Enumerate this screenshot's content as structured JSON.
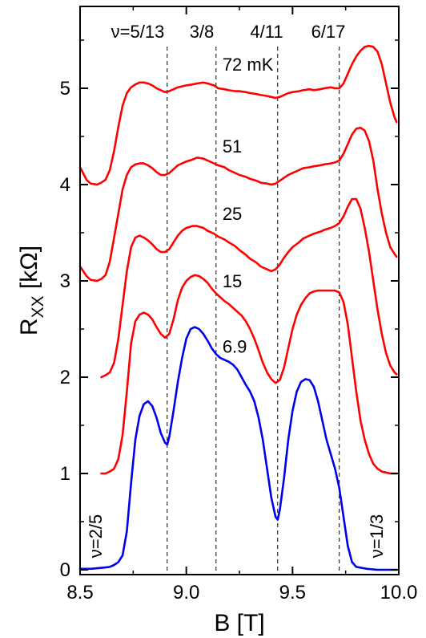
{
  "chart_data": {
    "type": "line",
    "xlabel": "B [T]",
    "ylabel_main": "R",
    "ylabel_sub": "XX",
    "ylabel_unit": " [kΩ]",
    "xlim": [
      8.5,
      10.0
    ],
    "ylim": [
      -0.05,
      5.85
    ],
    "xticks": [
      8.5,
      9.0,
      9.5,
      10.0
    ],
    "xtick_labels": [
      "8.5",
      "9.0",
      "9.5",
      "10.0"
    ],
    "yticks": [
      0,
      1,
      2,
      3,
      4,
      5
    ],
    "ytick_labels": [
      "0",
      "1",
      "2",
      "3",
      "4",
      "5"
    ],
    "grid": false,
    "colors": {
      "warm": "#ff0000",
      "base": "#0000ee",
      "marker": "#000000"
    },
    "markers": [
      {
        "x": 8.91,
        "label": "ν=5/13"
      },
      {
        "x": 9.14,
        "label": "3/8"
      },
      {
        "x": 9.43,
        "label": "4/11"
      },
      {
        "x": 9.72,
        "label": "6/17"
      }
    ],
    "side_labels": {
      "left": "ν=2/5",
      "right": "ν=1/3"
    },
    "series": [
      {
        "name": "72 mK",
        "color": "#ff0000",
        "x": [
          8.5,
          8.53,
          8.55,
          8.58,
          8.6,
          8.62,
          8.64,
          8.66,
          8.68,
          8.7,
          8.72,
          8.74,
          8.76,
          8.78,
          8.8,
          8.82,
          8.84,
          8.86,
          8.88,
          8.9,
          8.92,
          8.94,
          8.96,
          8.98,
          9.0,
          9.03,
          9.05,
          9.08,
          9.1,
          9.13,
          9.15,
          9.18,
          9.2,
          9.23,
          9.25,
          9.28,
          9.3,
          9.33,
          9.35,
          9.38,
          9.4,
          9.42,
          9.44,
          9.46,
          9.48,
          9.5,
          9.53,
          9.55,
          9.58,
          9.6,
          9.63,
          9.65,
          9.68,
          9.7,
          9.72,
          9.74,
          9.76,
          9.78,
          9.8,
          9.82,
          9.84,
          9.86,
          9.88,
          9.9,
          9.92,
          9.94,
          9.96,
          9.98,
          9.99
        ],
        "y": [
          4.18,
          4.05,
          4.01,
          4.0,
          4.02,
          4.05,
          4.15,
          4.35,
          4.6,
          4.82,
          4.95,
          5.01,
          5.04,
          5.06,
          5.06,
          5.05,
          5.03,
          5.0,
          4.98,
          4.96,
          4.97,
          4.99,
          5.01,
          5.02,
          5.03,
          5.04,
          5.05,
          5.06,
          5.05,
          5.03,
          5.0,
          4.99,
          4.98,
          4.97,
          4.97,
          4.96,
          4.95,
          4.94,
          4.93,
          4.92,
          4.91,
          4.9,
          4.91,
          4.93,
          4.95,
          4.96,
          4.97,
          4.98,
          4.99,
          4.98,
          4.99,
          5.0,
          5.01,
          5.0,
          5.0,
          5.05,
          5.15,
          5.25,
          5.33,
          5.39,
          5.43,
          5.44,
          5.43,
          5.38,
          5.25,
          5.05,
          4.85,
          4.7,
          4.65
        ]
      },
      {
        "name": "51",
        "color": "#ff0000",
        "x": [
          8.5,
          8.53,
          8.55,
          8.58,
          8.6,
          8.62,
          8.64,
          8.66,
          8.68,
          8.7,
          8.72,
          8.74,
          8.76,
          8.78,
          8.8,
          8.82,
          8.84,
          8.86,
          8.88,
          8.9,
          8.92,
          8.94,
          8.96,
          8.98,
          9.0,
          9.03,
          9.05,
          9.08,
          9.1,
          9.13,
          9.15,
          9.18,
          9.2,
          9.23,
          9.25,
          9.28,
          9.3,
          9.33,
          9.35,
          9.38,
          9.4,
          9.42,
          9.44,
          9.46,
          9.48,
          9.5,
          9.53,
          9.55,
          9.58,
          9.6,
          9.63,
          9.65,
          9.68,
          9.7,
          9.72,
          9.74,
          9.76,
          9.78,
          9.8,
          9.82,
          9.84,
          9.86,
          9.88,
          9.9,
          9.92,
          9.94,
          9.96,
          9.98,
          9.99
        ],
        "y": [
          3.15,
          3.05,
          3.01,
          3.0,
          3.02,
          3.06,
          3.2,
          3.45,
          3.7,
          3.95,
          4.1,
          4.18,
          4.21,
          4.22,
          4.22,
          4.2,
          4.17,
          4.13,
          4.1,
          4.1,
          4.12,
          4.16,
          4.2,
          4.22,
          4.24,
          4.26,
          4.28,
          4.27,
          4.25,
          4.22,
          4.2,
          4.18,
          4.15,
          4.12,
          4.1,
          4.08,
          4.06,
          4.04,
          4.02,
          4.01,
          4.0,
          4.01,
          4.04,
          4.07,
          4.1,
          4.12,
          4.15,
          4.17,
          4.18,
          4.19,
          4.2,
          4.21,
          4.22,
          4.23,
          4.25,
          4.32,
          4.42,
          4.52,
          4.58,
          4.59,
          4.56,
          4.45,
          4.25,
          3.95,
          3.7,
          3.5,
          3.35,
          3.28,
          3.25
        ]
      },
      {
        "name": "25",
        "color": "#ff0000",
        "x": [
          8.6,
          8.62,
          8.64,
          8.66,
          8.68,
          8.7,
          8.72,
          8.74,
          8.76,
          8.78,
          8.8,
          8.82,
          8.84,
          8.86,
          8.88,
          8.9,
          8.92,
          8.94,
          8.96,
          8.98,
          9.0,
          9.03,
          9.05,
          9.08,
          9.1,
          9.13,
          9.15,
          9.18,
          9.2,
          9.23,
          9.25,
          9.28,
          9.3,
          9.33,
          9.35,
          9.38,
          9.4,
          9.42,
          9.44,
          9.46,
          9.48,
          9.5,
          9.53,
          9.55,
          9.58,
          9.6,
          9.63,
          9.65,
          9.68,
          9.7,
          9.72,
          9.74,
          9.76,
          9.78,
          9.8,
          9.82,
          9.84,
          9.86,
          9.88,
          9.9,
          9.92,
          9.94,
          9.96,
          9.98,
          9.99
        ],
        "y": [
          2.0,
          2.02,
          2.05,
          2.15,
          2.4,
          2.75,
          3.1,
          3.35,
          3.45,
          3.47,
          3.45,
          3.42,
          3.38,
          3.33,
          3.3,
          3.3,
          3.33,
          3.4,
          3.47,
          3.52,
          3.55,
          3.57,
          3.57,
          3.55,
          3.52,
          3.49,
          3.46,
          3.43,
          3.4,
          3.36,
          3.32,
          3.27,
          3.23,
          3.19,
          3.15,
          3.12,
          3.1,
          3.12,
          3.17,
          3.24,
          3.3,
          3.35,
          3.4,
          3.44,
          3.47,
          3.49,
          3.51,
          3.53,
          3.55,
          3.57,
          3.6,
          3.67,
          3.77,
          3.85,
          3.85,
          3.75,
          3.55,
          3.3,
          3.0,
          2.7,
          2.45,
          2.25,
          2.12,
          2.05,
          2.03
        ]
      },
      {
        "name": "15",
        "color": "#ff0000",
        "x": [
          8.6,
          8.62,
          8.64,
          8.66,
          8.68,
          8.7,
          8.72,
          8.74,
          8.76,
          8.78,
          8.8,
          8.82,
          8.84,
          8.86,
          8.88,
          8.9,
          8.92,
          8.94,
          8.96,
          8.98,
          9.0,
          9.02,
          9.04,
          9.06,
          9.08,
          9.1,
          9.12,
          9.14,
          9.16,
          9.18,
          9.2,
          9.22,
          9.24,
          9.26,
          9.28,
          9.3,
          9.32,
          9.34,
          9.36,
          9.38,
          9.4,
          9.42,
          9.44,
          9.46,
          9.48,
          9.5,
          9.52,
          9.54,
          9.56,
          9.58,
          9.6,
          9.62,
          9.64,
          9.66,
          9.68,
          9.7,
          9.72,
          9.74,
          9.76,
          9.78,
          9.8,
          9.82,
          9.84,
          9.86,
          9.88,
          9.9,
          9.92,
          9.94,
          9.96,
          9.98,
          9.99
        ],
        "y": [
          1.0,
          1.0,
          1.02,
          1.05,
          1.15,
          1.4,
          1.85,
          2.35,
          2.58,
          2.65,
          2.67,
          2.65,
          2.6,
          2.52,
          2.45,
          2.41,
          2.45,
          2.6,
          2.8,
          2.93,
          3.0,
          3.04,
          3.06,
          3.05,
          3.02,
          2.98,
          2.92,
          2.87,
          2.83,
          2.79,
          2.76,
          2.72,
          2.68,
          2.64,
          2.58,
          2.5,
          2.4,
          2.28,
          2.15,
          2.05,
          1.98,
          1.94,
          1.97,
          2.1,
          2.3,
          2.5,
          2.65,
          2.75,
          2.82,
          2.87,
          2.89,
          2.9,
          2.9,
          2.9,
          2.9,
          2.9,
          2.88,
          2.78,
          2.55,
          2.2,
          1.85,
          1.55,
          1.35,
          1.2,
          1.1,
          1.05,
          1.02,
          1.01,
          1.0,
          1.0,
          1.0
        ]
      },
      {
        "name": "6.9",
        "color": "#0000ee",
        "x": [
          8.5,
          8.55,
          8.6,
          8.64,
          8.66,
          8.68,
          8.7,
          8.72,
          8.74,
          8.76,
          8.78,
          8.8,
          8.82,
          8.84,
          8.86,
          8.88,
          8.9,
          8.91,
          8.92,
          8.94,
          8.96,
          8.98,
          9.0,
          9.02,
          9.04,
          9.06,
          9.08,
          9.1,
          9.12,
          9.14,
          9.16,
          9.18,
          9.2,
          9.22,
          9.24,
          9.26,
          9.28,
          9.3,
          9.32,
          9.34,
          9.36,
          9.38,
          9.4,
          9.42,
          9.43,
          9.44,
          9.46,
          9.48,
          9.5,
          9.52,
          9.54,
          9.56,
          9.58,
          9.6,
          9.62,
          9.64,
          9.66,
          9.68,
          9.7,
          9.72,
          9.74,
          9.76,
          9.78,
          9.8,
          9.85,
          9.9,
          9.95,
          9.99
        ],
        "y": [
          0.01,
          0.01,
          0.02,
          0.03,
          0.05,
          0.08,
          0.15,
          0.4,
          0.9,
          1.35,
          1.6,
          1.72,
          1.75,
          1.7,
          1.58,
          1.42,
          1.32,
          1.3,
          1.38,
          1.65,
          1.95,
          2.2,
          2.4,
          2.5,
          2.52,
          2.5,
          2.45,
          2.38,
          2.3,
          2.24,
          2.2,
          2.18,
          2.16,
          2.13,
          2.08,
          2.0,
          1.92,
          1.85,
          1.75,
          1.58,
          1.35,
          1.05,
          0.75,
          0.55,
          0.52,
          0.62,
          0.95,
          1.35,
          1.65,
          1.85,
          1.95,
          1.98,
          1.97,
          1.9,
          1.75,
          1.55,
          1.35,
          1.2,
          1.05,
          0.85,
          0.55,
          0.25,
          0.08,
          0.03,
          0.01,
          0.0,
          0.0,
          0.0
        ]
      }
    ],
    "series_label_pos": [
      {
        "x": 9.14,
        "y": 5.25
      },
      {
        "x": 9.14,
        "y": 4.4
      },
      {
        "x": 9.14,
        "y": 3.7
      },
      {
        "x": 9.14,
        "y": 3.0
      },
      {
        "x": 9.14,
        "y": 2.32
      }
    ]
  }
}
